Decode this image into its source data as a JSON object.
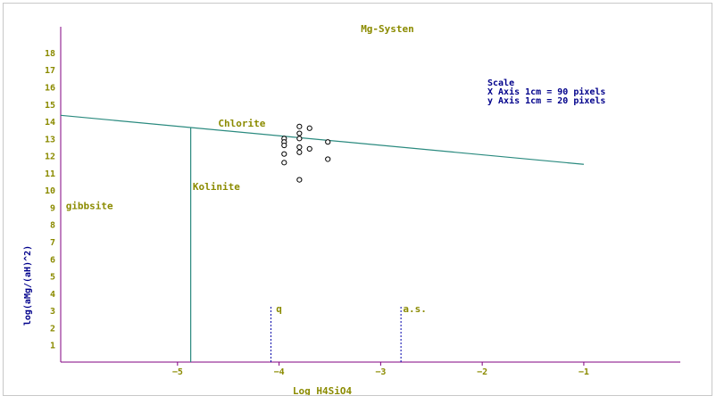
{
  "chart_data": {
    "type": "scatter",
    "title": "Mg-Systen",
    "xlabel": "Log H4SiO4",
    "ylabel": "log(aMg/(aH)^2)",
    "xlim": [
      -6.15,
      -0.05
    ],
    "ylim": [
      0,
      19.5
    ],
    "x_ticks": [
      -5,
      -4,
      -3,
      -2,
      -1
    ],
    "y_ticks": [
      1,
      2,
      3,
      4,
      5,
      6,
      7,
      8,
      9,
      10,
      11,
      12,
      13,
      14,
      15,
      16,
      17,
      18
    ],
    "grid": false,
    "legend": "none",
    "scale_note": [
      "Scale",
      "X Axis 1cm = 90 pixels",
      "y Axis 1cm = 20 pixels"
    ],
    "region_labels": [
      {
        "text": "Chlorite",
        "x": -4.6,
        "y": 13.7
      },
      {
        "text": "Kolinite",
        "x": -4.85,
        "y": 10.0
      },
      {
        "text": "gibbsite",
        "x": -6.1,
        "y": 8.9
      },
      {
        "text": "q",
        "x": -4.03,
        "y": 2.9
      },
      {
        "text": "a.s.",
        "x": -2.78,
        "y": 2.9
      }
    ],
    "boundary_lines": [
      {
        "x": [
          -6.15,
          -1.0
        ],
        "y": [
          14.35,
          11.5
        ],
        "color": "#2a8a7f"
      },
      {
        "x": [
          -4.87,
          -4.87
        ],
        "y": [
          0,
          13.65
        ],
        "color": "#2a8a7f"
      }
    ],
    "dashed_lines": [
      {
        "x": -4.08,
        "y": [
          0,
          3.3
        ],
        "color": "#0000aa"
      },
      {
        "x": -2.8,
        "y": [
          0,
          3.3
        ],
        "color": "#0000aa"
      }
    ],
    "points": [
      {
        "x": -3.95,
        "y": 13.0
      },
      {
        "x": -3.95,
        "y": 12.8
      },
      {
        "x": -3.95,
        "y": 12.6
      },
      {
        "x": -3.95,
        "y": 12.1
      },
      {
        "x": -3.95,
        "y": 11.6
      },
      {
        "x": -3.8,
        "y": 13.7
      },
      {
        "x": -3.8,
        "y": 13.3
      },
      {
        "x": -3.8,
        "y": 13.0
      },
      {
        "x": -3.8,
        "y": 12.5
      },
      {
        "x": -3.8,
        "y": 12.2
      },
      {
        "x": -3.8,
        "y": 10.6
      },
      {
        "x": -3.7,
        "y": 13.6
      },
      {
        "x": -3.7,
        "y": 12.4
      },
      {
        "x": -3.52,
        "y": 12.8
      },
      {
        "x": -3.52,
        "y": 11.8
      }
    ],
    "colors": {
      "axis": "#800080",
      "tick_text": "#8b8b00",
      "title_text": "#8b8b00",
      "ylabel_text": "#00008b",
      "scale_text": "#00008b",
      "label_text": "#8b8b00",
      "point_stroke": "#000000"
    }
  }
}
